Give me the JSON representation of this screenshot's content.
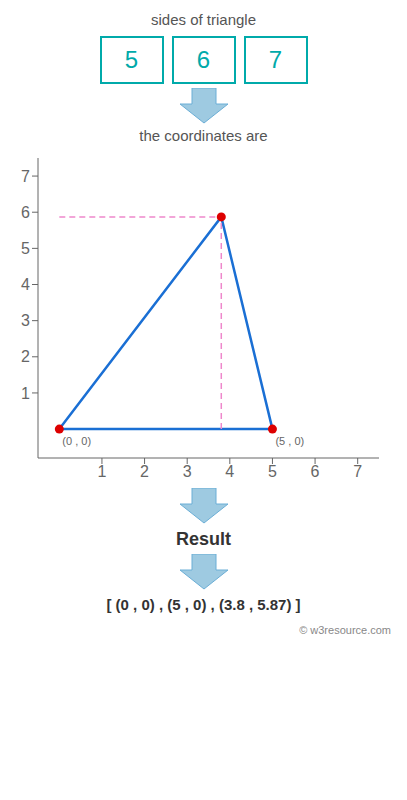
{
  "chart_data": {
    "type": "line",
    "title": "sides of triangle",
    "subtitle": "the coordinates are",
    "sides": {
      "values": [
        5,
        6,
        7
      ],
      "color": "#00aaaa"
    },
    "series": [
      {
        "type": "line",
        "color": "#1a6fd4",
        "x": [
          0,
          5,
          3.8,
          0
        ],
        "values": [
          0,
          0,
          5.87,
          0
        ]
      },
      {
        "type": "line",
        "line_style": "dashed",
        "color": "#ee88cc",
        "x": [
          3.8,
          3.8
        ],
        "values": [
          0,
          5.87
        ]
      },
      {
        "type": "line",
        "line_style": "dashed",
        "color": "#ee88cc",
        "x": [
          0,
          3.8
        ],
        "values": [
          5.87,
          5.87
        ]
      },
      {
        "type": "scatter",
        "marker": "o",
        "color": "#dd0000",
        "x": [
          0,
          5,
          3.8
        ],
        "values": [
          0,
          0,
          5.87
        ]
      }
    ],
    "annotations": [
      {
        "text": "(0 , 0)",
        "x": 0,
        "y": 0
      },
      {
        "text": "(5 , 0)",
        "x": 5,
        "y": 0
      },
      "Result",
      "[ (0 , 0) , (5 , 0) , (3.8 , 5.87) ]",
      "© w3resource.com"
    ],
    "xlim": [
      -0.5,
      7.5
    ],
    "ylim": [
      -0.8,
      7.5
    ],
    "xticks": [
      1,
      2,
      3,
      4,
      5,
      6,
      7
    ],
    "yticks": [
      1,
      2,
      3,
      4,
      5,
      6,
      7
    ],
    "grid": false
  }
}
